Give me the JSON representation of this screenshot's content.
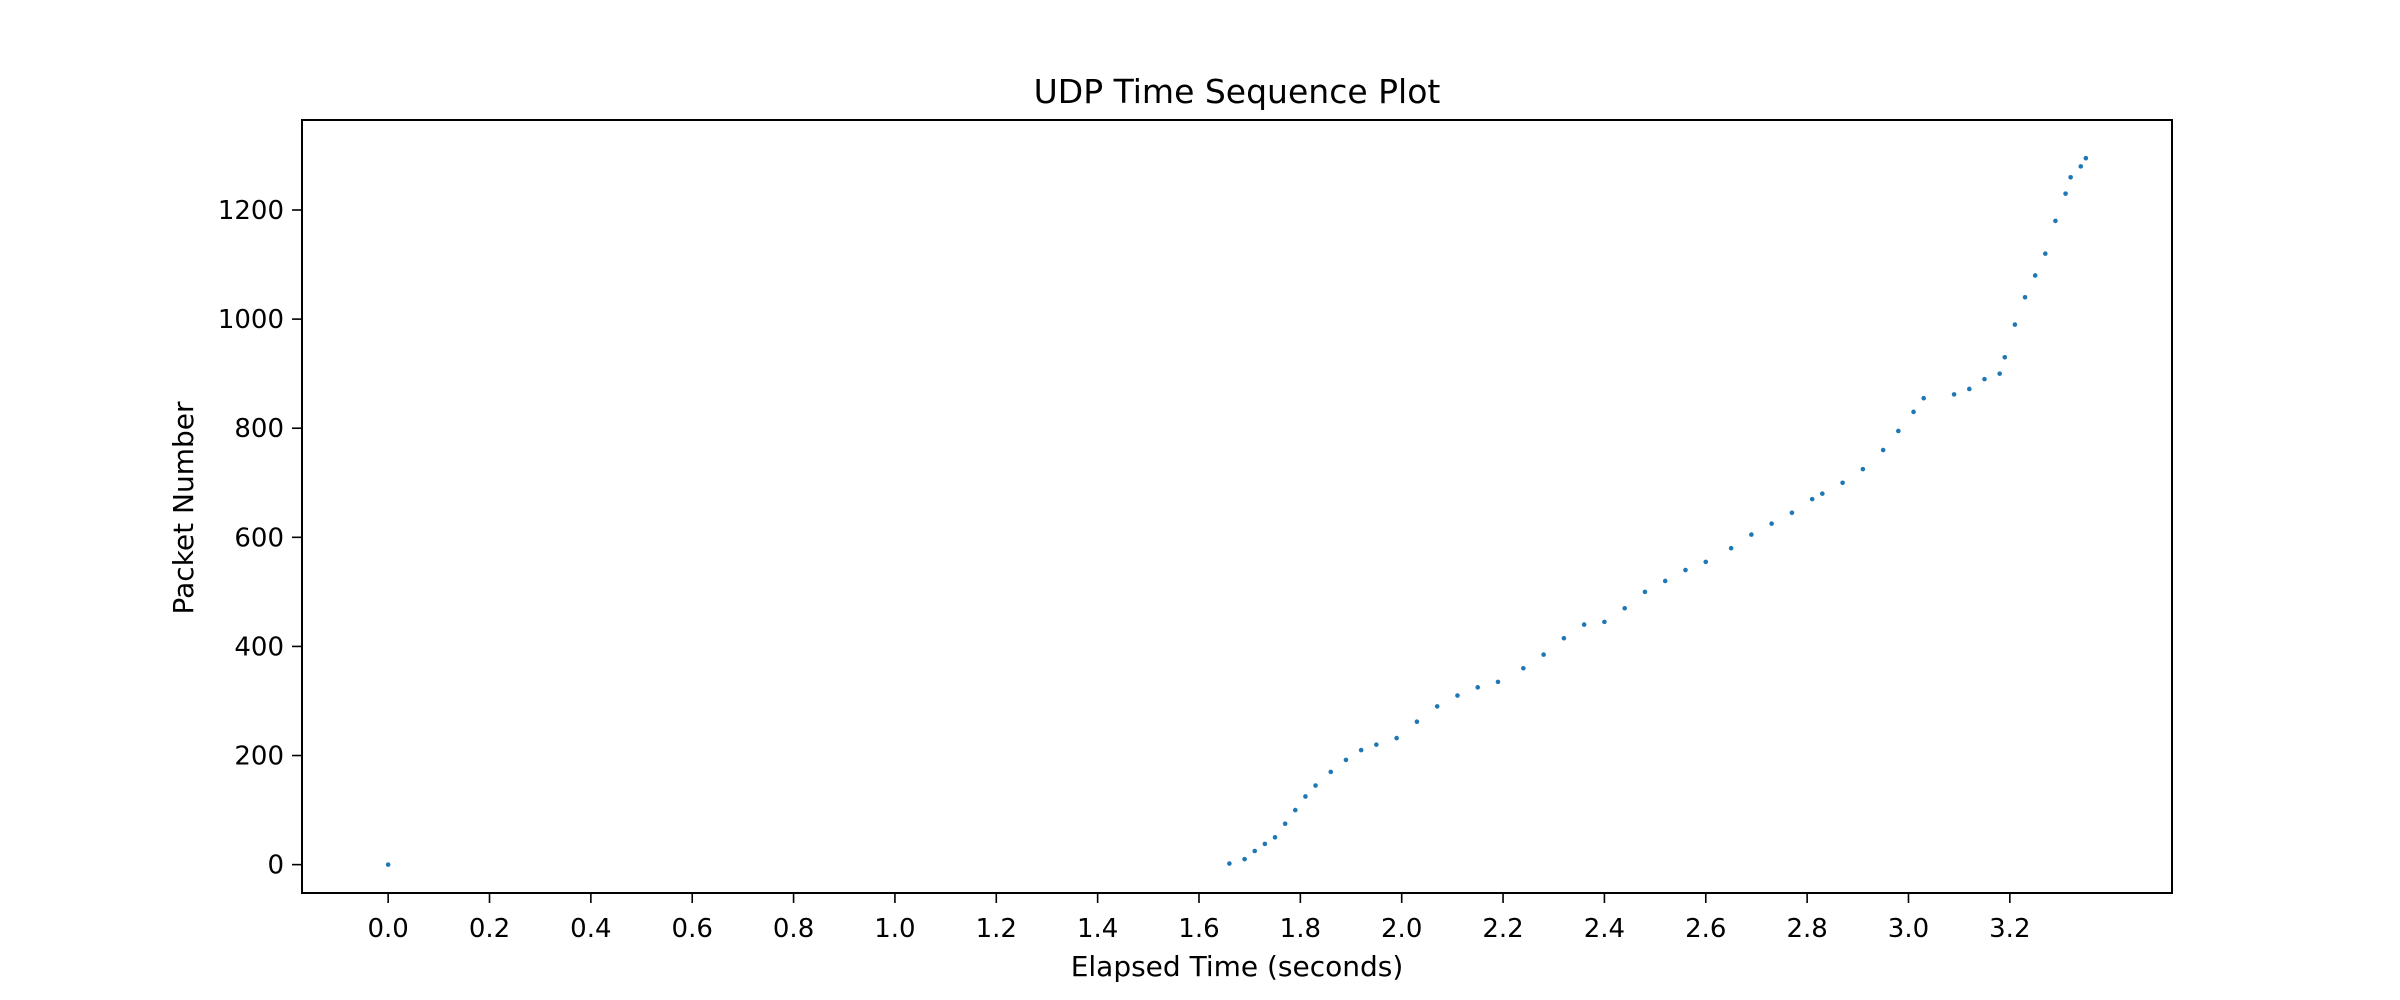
{
  "chart_data": {
    "type": "scatter",
    "title": "UDP Time Sequence Plot",
    "xlabel": "Elapsed Time (seconds)",
    "ylabel": "Packet Number",
    "xlim": [
      -0.17,
      3.52
    ],
    "ylim": [
      -52,
      1365
    ],
    "xticks": [
      "0.0",
      "0.2",
      "0.4",
      "0.6",
      "0.8",
      "1.0",
      "1.2",
      "1.4",
      "1.6",
      "1.8",
      "2.0",
      "2.2",
      "2.4",
      "2.6",
      "2.8",
      "3.0",
      "3.2"
    ],
    "yticks": [
      "0",
      "200",
      "400",
      "600",
      "800",
      "1000",
      "1200"
    ],
    "grid": false,
    "legend": "none",
    "marker_color": "#1f77b4",
    "series": [
      {
        "x": [
          0.0,
          1.66,
          1.69,
          1.71,
          1.73,
          1.75,
          1.77,
          1.79,
          1.81,
          1.83,
          1.86,
          1.89,
          1.92,
          1.95,
          1.99,
          2.03,
          2.07,
          2.11,
          2.15,
          2.19,
          2.24,
          2.28,
          2.32,
          2.36,
          2.4,
          2.44,
          2.48,
          2.52,
          2.56,
          2.6,
          2.65,
          2.69,
          2.73,
          2.77,
          2.81,
          2.83,
          2.87,
          2.91,
          2.95,
          2.98,
          3.01,
          3.03,
          3.09,
          3.12,
          3.15,
          3.18,
          3.19,
          3.21,
          3.23,
          3.25,
          3.27,
          3.29,
          3.31,
          3.32,
          3.34,
          3.35
        ],
        "y": [
          0,
          2,
          10,
          25,
          38,
          50,
          75,
          100,
          125,
          145,
          170,
          192,
          210,
          220,
          232,
          262,
          290,
          310,
          325,
          335,
          360,
          385,
          415,
          440,
          445,
          470,
          500,
          520,
          540,
          555,
          580,
          605,
          625,
          645,
          670,
          680,
          700,
          725,
          760,
          795,
          830,
          855,
          862,
          872,
          890,
          900,
          930,
          990,
          1040,
          1080,
          1120,
          1180,
          1230,
          1260,
          1280,
          1295
        ]
      }
    ]
  }
}
